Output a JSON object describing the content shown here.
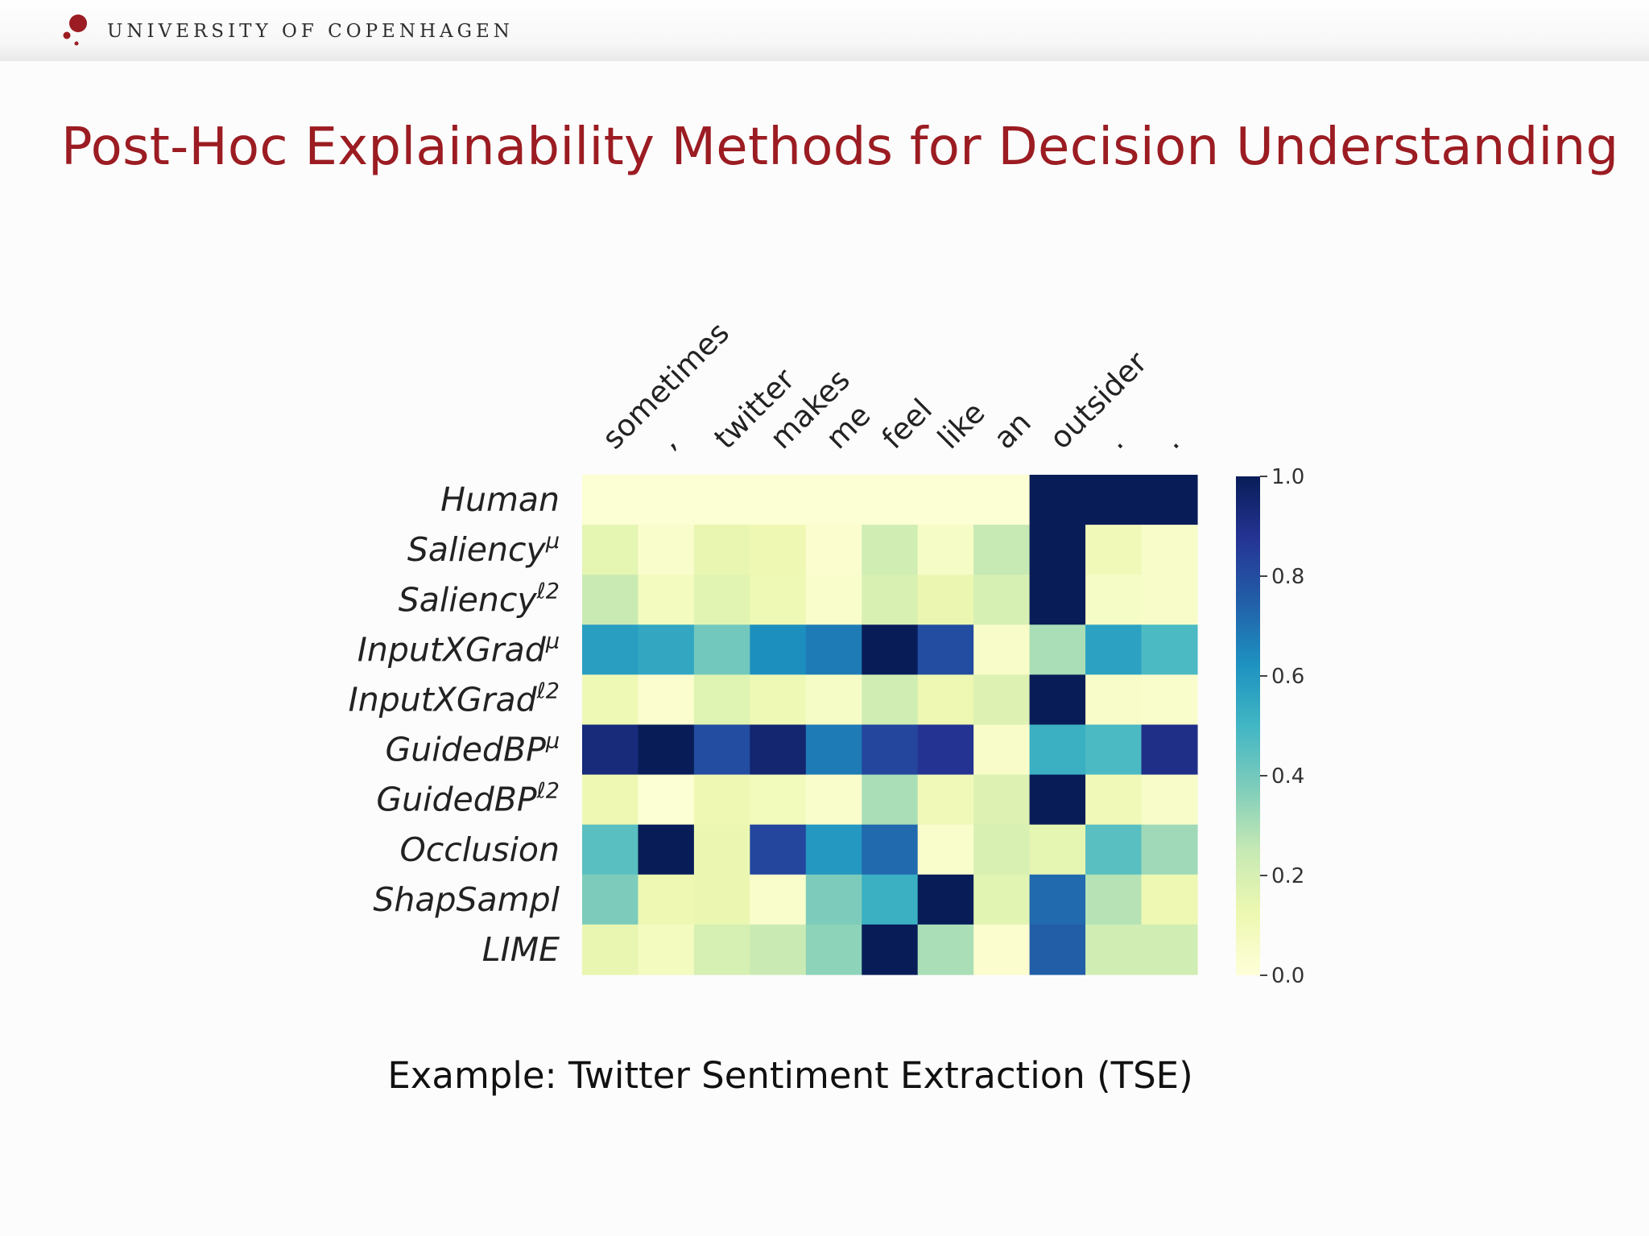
{
  "header": {
    "university_name": "UNIVERSITY OF COPENHAGEN",
    "logo_icon": "university-seal-dots-icon",
    "brand_color": "#9b1c22"
  },
  "slide": {
    "title": "Post-Hoc Explainability Methods for Decision Understanding",
    "caption": "Example: Twitter Sentiment Extraction (TSE)"
  },
  "chart_data": {
    "type": "heatmap",
    "colormap": "YlGnBu",
    "x_tokens": [
      "sometimes",
      ",",
      "twitter",
      "makes",
      "me",
      "feel",
      "like",
      "an",
      "outsider",
      ".",
      "."
    ],
    "rows": [
      {
        "label": "Human",
        "sup": "",
        "values": [
          0.02,
          0.02,
          0.02,
          0.02,
          0.02,
          0.02,
          0.02,
          0.02,
          1.0,
          1.0,
          1.0
        ]
      },
      {
        "label": "Saliency",
        "sup": "μ",
        "values": [
          0.15,
          0.04,
          0.14,
          0.12,
          0.03,
          0.22,
          0.06,
          0.25,
          1.0,
          0.1,
          0.05
        ]
      },
      {
        "label": "Saliency",
        "sup": "ℓ2",
        "values": [
          0.24,
          0.08,
          0.16,
          0.11,
          0.04,
          0.19,
          0.13,
          0.2,
          1.0,
          0.06,
          0.05
        ]
      },
      {
        "label": "InputXGrad",
        "sup": "μ",
        "values": [
          0.58,
          0.55,
          0.4,
          0.63,
          0.68,
          1.0,
          0.8,
          0.05,
          0.3,
          0.57,
          0.48
        ]
      },
      {
        "label": "InputXGrad",
        "sup": "ℓ2",
        "values": [
          0.11,
          0.03,
          0.17,
          0.11,
          0.06,
          0.22,
          0.12,
          0.18,
          1.0,
          0.05,
          0.04
        ]
      },
      {
        "label": "GuidedBP",
        "sup": "μ",
        "values": [
          0.93,
          1.0,
          0.8,
          0.95,
          0.68,
          0.82,
          0.88,
          0.05,
          0.52,
          0.48,
          0.9
        ]
      },
      {
        "label": "GuidedBP",
        "sup": "ℓ2",
        "values": [
          0.12,
          0.02,
          0.12,
          0.09,
          0.04,
          0.3,
          0.1,
          0.18,
          1.0,
          0.1,
          0.05
        ]
      },
      {
        "label": "Occlusion",
        "sup": "",
        "values": [
          0.45,
          1.0,
          0.13,
          0.82,
          0.6,
          0.72,
          0.04,
          0.19,
          0.15,
          0.45,
          0.32
        ]
      },
      {
        "label": "ShapSampl",
        "sup": "",
        "values": [
          0.38,
          0.12,
          0.13,
          0.04,
          0.38,
          0.52,
          1.0,
          0.16,
          0.72,
          0.28,
          0.12
        ]
      },
      {
        "label": "LIME",
        "sup": "",
        "values": [
          0.14,
          0.08,
          0.2,
          0.24,
          0.35,
          1.0,
          0.3,
          0.03,
          0.75,
          0.22,
          0.22
        ]
      }
    ],
    "colorbar": {
      "range": [
        0.0,
        1.0
      ],
      "ticks": [
        "0.0",
        "0.2",
        "0.4",
        "0.6",
        "0.8",
        "1.0"
      ]
    },
    "grid": false
  }
}
